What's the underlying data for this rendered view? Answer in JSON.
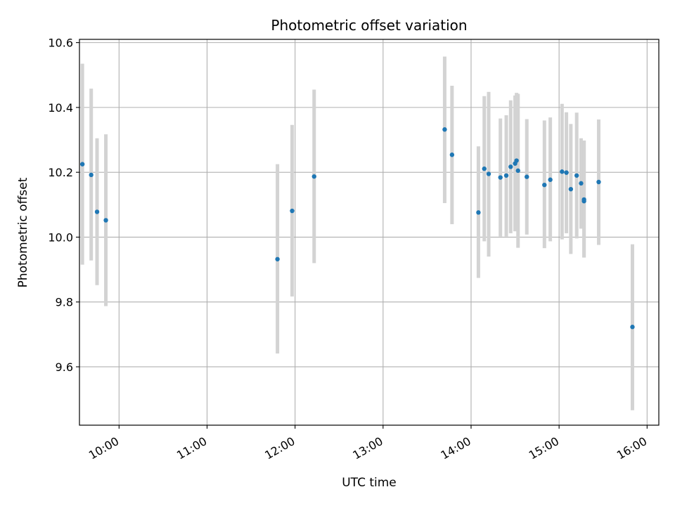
{
  "chart_data": {
    "type": "scatter",
    "title": "Photometric offset variation",
    "xlabel": "UTC time",
    "ylabel": "Photometric offset",
    "x_axis_type": "time",
    "xlim": [
      "09:33",
      "16:08"
    ],
    "ylim": [
      9.42,
      10.61
    ],
    "x_ticks": [
      "10:00",
      "11:00",
      "12:00",
      "13:00",
      "14:00",
      "15:00",
      "16:00"
    ],
    "y_ticks": [
      9.6,
      9.8,
      10.0,
      10.2,
      10.4,
      10.6
    ],
    "y_tick_labels": [
      "9.6",
      "9.8",
      "10.0",
      "10.2",
      "10.4",
      "10.6"
    ],
    "grid": true,
    "colors": {
      "marker": "#1f77b4",
      "errorbar": "#d3d3d3",
      "grid": "#b0b0b0",
      "axes": "#000000"
    },
    "points": [
      {
        "x": "09:35",
        "y": 10.225,
        "yerr_low": 9.915,
        "yerr_high": 10.535
      },
      {
        "x": "09:41",
        "y": 10.192,
        "yerr_low": 9.928,
        "yerr_high": 10.458
      },
      {
        "x": "09:45",
        "y": 10.078,
        "yerr_low": 9.852,
        "yerr_high": 10.305
      },
      {
        "x": "09:51",
        "y": 10.052,
        "yerr_low": 9.787,
        "yerr_high": 10.317
      },
      {
        "x": "11:48",
        "y": 9.932,
        "yerr_low": 9.641,
        "yerr_high": 10.225
      },
      {
        "x": "11:58",
        "y": 10.081,
        "yerr_low": 9.817,
        "yerr_high": 10.346
      },
      {
        "x": "12:13",
        "y": 10.187,
        "yerr_low": 9.92,
        "yerr_high": 10.455
      },
      {
        "x": "13:42",
        "y": 10.332,
        "yerr_low": 10.105,
        "yerr_high": 10.557
      },
      {
        "x": "13:47",
        "y": 10.254,
        "yerr_low": 10.04,
        "yerr_high": 10.467
      },
      {
        "x": "14:05",
        "y": 10.076,
        "yerr_low": 9.874,
        "yerr_high": 10.28
      },
      {
        "x": "14:09",
        "y": 10.211,
        "yerr_low": 9.987,
        "yerr_high": 10.435
      },
      {
        "x": "14:12",
        "y": 10.195,
        "yerr_low": 9.94,
        "yerr_high": 10.448
      },
      {
        "x": "14:20",
        "y": 10.184,
        "yerr_low": 10.002,
        "yerr_high": 10.366
      },
      {
        "x": "14:24",
        "y": 10.19,
        "yerr_low": 10.002,
        "yerr_high": 10.376
      },
      {
        "x": "14:27",
        "y": 10.217,
        "yerr_low": 10.012,
        "yerr_high": 10.422
      },
      {
        "x": "14:30",
        "y": 10.227,
        "yerr_low": 10.018,
        "yerr_high": 10.437
      },
      {
        "x": "14:31",
        "y": 10.236,
        "yerr_low": 10.027,
        "yerr_high": 10.445
      },
      {
        "x": "14:32",
        "y": 10.205,
        "yerr_low": 9.967,
        "yerr_high": 10.442
      },
      {
        "x": "14:38",
        "y": 10.186,
        "yerr_low": 10.008,
        "yerr_high": 10.364
      },
      {
        "x": "14:50",
        "y": 10.161,
        "yerr_low": 9.966,
        "yerr_high": 10.36
      },
      {
        "x": "14:54",
        "y": 10.177,
        "yerr_low": 9.987,
        "yerr_high": 10.369
      },
      {
        "x": "15:02",
        "y": 10.202,
        "yerr_low": 9.993,
        "yerr_high": 10.411
      },
      {
        "x": "15:05",
        "y": 10.199,
        "yerr_low": 10.012,
        "yerr_high": 10.385
      },
      {
        "x": "15:08",
        "y": 10.148,
        "yerr_low": 9.948,
        "yerr_high": 10.349
      },
      {
        "x": "15:12",
        "y": 10.19,
        "yerr_low": 9.996,
        "yerr_high": 10.384
      },
      {
        "x": "15:15",
        "y": 10.166,
        "yerr_low": 10.026,
        "yerr_high": 10.305
      },
      {
        "x": "15:17",
        "y": 10.111,
        "yerr_low": 9.937,
        "yerr_high": 10.298
      },
      {
        "x": "15:17",
        "y": 10.116,
        "yerr_low": 9.937,
        "yerr_high": 10.298
      },
      {
        "x": "15:27",
        "y": 10.17,
        "yerr_low": 9.976,
        "yerr_high": 10.363
      },
      {
        "x": "15:50",
        "y": 9.723,
        "yerr_low": 9.466,
        "yerr_high": 9.978
      }
    ]
  }
}
